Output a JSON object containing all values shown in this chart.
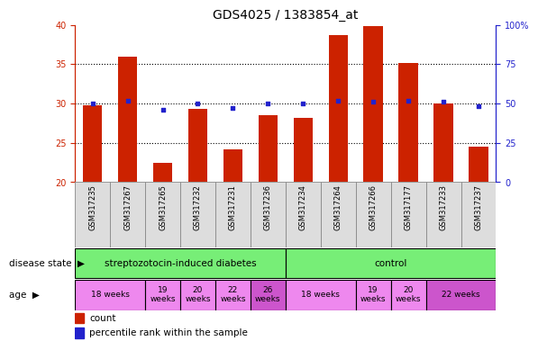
{
  "title": "GDS4025 / 1383854_at",
  "samples": [
    "GSM317235",
    "GSM317267",
    "GSM317265",
    "GSM317232",
    "GSM317231",
    "GSM317236",
    "GSM317234",
    "GSM317264",
    "GSM317266",
    "GSM317177",
    "GSM317233",
    "GSM317237"
  ],
  "counts": [
    29.8,
    36.0,
    22.5,
    29.3,
    24.2,
    28.5,
    28.2,
    38.7,
    39.8,
    35.2,
    30.0,
    24.5
  ],
  "percentiles": [
    50,
    52,
    46,
    50,
    47,
    50,
    50,
    52,
    51,
    52,
    51,
    48
  ],
  "ylim_left": [
    20,
    40
  ],
  "ylim_right": [
    0,
    100
  ],
  "yticks_left": [
    20,
    25,
    30,
    35,
    40
  ],
  "yticks_right": [
    0,
    25,
    50,
    75,
    100
  ],
  "bar_color": "#CC2200",
  "dot_color": "#2222CC",
  "left_axis_color": "#CC2200",
  "right_axis_color": "#2222CC",
  "tick_label_size": 7,
  "title_size": 10,
  "legend_count_label": "count",
  "legend_pct_label": "percentile rank within the sample",
  "disease_state_label": "disease state",
  "age_label": "age",
  "disease_groups": [
    {
      "label": "streptozotocin-induced diabetes",
      "start": 0,
      "end": 6,
      "color": "#77EE77"
    },
    {
      "label": "control",
      "start": 6,
      "end": 12,
      "color": "#77EE77"
    }
  ],
  "age_groups": [
    {
      "label": "18 weeks",
      "start": 0,
      "end": 2,
      "color": "#EE88EE"
    },
    {
      "label": "19\nweeks",
      "start": 2,
      "end": 3,
      "color": "#EE88EE"
    },
    {
      "label": "20\nweeks",
      "start": 3,
      "end": 4,
      "color": "#EE88EE"
    },
    {
      "label": "22\nweeks",
      "start": 4,
      "end": 5,
      "color": "#EE88EE"
    },
    {
      "label": "26\nweeks",
      "start": 5,
      "end": 6,
      "color": "#CC55CC"
    },
    {
      "label": "18 weeks",
      "start": 6,
      "end": 8,
      "color": "#EE88EE"
    },
    {
      "label": "19\nweeks",
      "start": 8,
      "end": 9,
      "color": "#EE88EE"
    },
    {
      "label": "20\nweeks",
      "start": 9,
      "end": 10,
      "color": "#EE88EE"
    },
    {
      "label": "22 weeks",
      "start": 10,
      "end": 12,
      "color": "#CC55CC"
    }
  ]
}
